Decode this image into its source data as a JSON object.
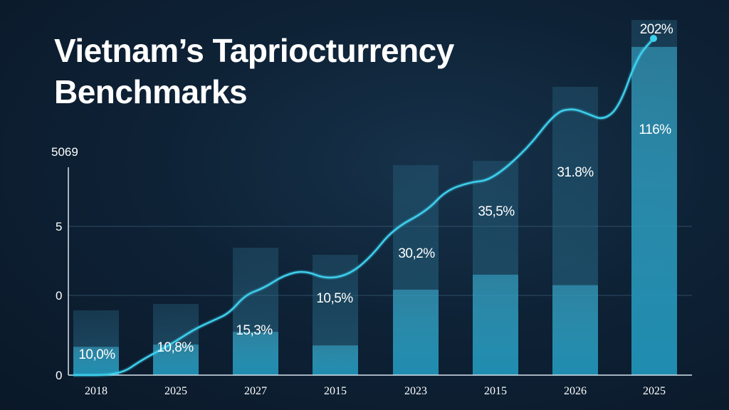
{
  "chart_data": {
    "type": "bar",
    "title": "Vietnam’s Tapriocturrency Benchmarks",
    "xlabel": "",
    "ylabel": "",
    "y_tick_labels": [
      "0",
      "0",
      "5",
      "5069"
    ],
    "categories": [
      "2018",
      "2025",
      "2027",
      "2015",
      "2023",
      "2015",
      "2026",
      "2025"
    ],
    "series": [
      {
        "type": "bar",
        "values": [
          10.0,
          10.8,
          15.3,
          10.5,
          30.2,
          35.5,
          31.8,
          116
        ],
        "labels": [
          "10,0%",
          "10,8%",
          "15,3%",
          "10,5%",
          "30,2%",
          "35,5%",
          "31.8%",
          "116%"
        ]
      },
      {
        "type": "line",
        "end_label": "202%"
      }
    ],
    "grid": true,
    "colors": {
      "bar": "#2a9fc0",
      "line": "#35c8e8",
      "background": "#0e2236"
    }
  }
}
